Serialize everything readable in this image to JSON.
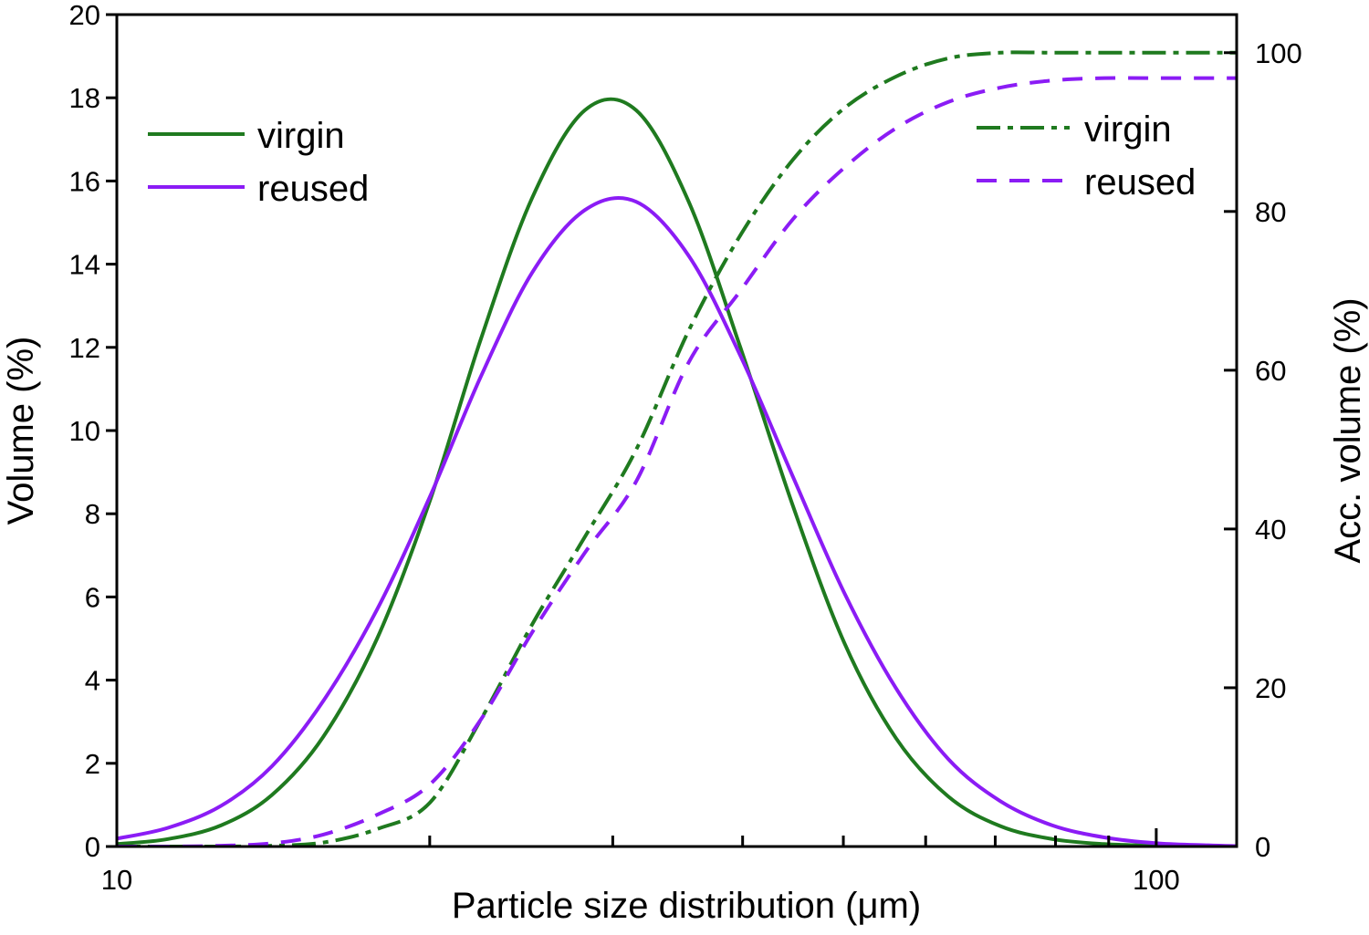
{
  "chart_data": {
    "type": "line",
    "title": "",
    "xlabel": "Particle size distribution (μm)",
    "ylabel": "Volume (%)",
    "y2label": "Acc. volume (%)",
    "xscale": "log",
    "xlim": [
      10,
      119.5
    ],
    "ylim": [
      0,
      20
    ],
    "y2lim": [
      0,
      104.8
    ],
    "xticks": [
      "10",
      "100"
    ],
    "xtick_values": [
      10,
      100
    ],
    "yticks": [
      "0",
      "2",
      "4",
      "6",
      "8",
      "10",
      "12",
      "14",
      "16",
      "18",
      "20"
    ],
    "y2ticks": [
      "0",
      "20",
      "40",
      "60",
      "80",
      "100"
    ],
    "grid": false,
    "colors": {
      "virgin": "#1f7a1f",
      "reused": "#8b1cf5"
    },
    "x": [
      10,
      11.2,
      12.6,
      14.1,
      15.8,
      17.8,
      20.0,
      22.4,
      25.1,
      28.2,
      31.6,
      35.5,
      39.8,
      44.7,
      50.1,
      56.2,
      63.1,
      70.8,
      79.4,
      89.1,
      100,
      112.2,
      119.5
    ],
    "series": [
      {
        "name": "virgin",
        "axis": "left",
        "style": "solid",
        "legend": "left-top",
        "values": [
          0.06,
          0.18,
          0.51,
          1.24,
          2.64,
          5.0,
          8.3,
          12.2,
          15.6,
          17.7,
          17.7,
          15.5,
          12.0,
          8.2,
          4.9,
          2.6,
          1.2,
          0.49,
          0.18,
          0.06,
          0.02,
          0,
          0
        ]
      },
      {
        "name": "reused",
        "axis": "left",
        "style": "solid",
        "legend": "left-top",
        "values": [
          0.19,
          0.45,
          0.98,
          1.93,
          3.5,
          5.7,
          8.4,
          11.3,
          13.8,
          15.3,
          15.5,
          14.2,
          11.8,
          8.9,
          6.1,
          3.8,
          2.1,
          1.09,
          0.51,
          0.22,
          0.08,
          0.03,
          0.01
        ]
      },
      {
        "name": "virgin",
        "axis": "right",
        "style": "dash-dot",
        "legend": "right-top",
        "values": [
          0,
          0,
          0,
          0.1,
          0.5,
          2.2,
          5.5,
          16,
          28,
          39,
          50,
          65,
          77,
          86.5,
          93,
          97,
          99.3,
          100,
          100,
          100,
          100,
          100,
          100
        ]
      },
      {
        "name": "reused",
        "axis": "right",
        "style": "dashed",
        "legend": "right-top",
        "values": [
          0,
          0,
          0.1,
          0.4,
          1.5,
          4,
          7.8,
          16,
          27,
          37,
          46,
          61,
          70,
          79,
          85.5,
          90.5,
          93.8,
          95.6,
          96.5,
          96.8,
          96.8,
          96.8,
          96.8
        ]
      }
    ]
  }
}
